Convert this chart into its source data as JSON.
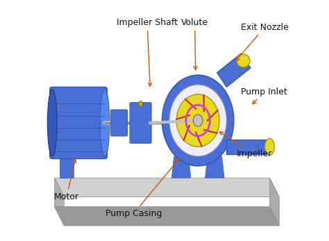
{
  "background_color": "#ffffff",
  "annotation_color": "#cc5500",
  "annotation_fontsize": 9,
  "pump_blue": "#4a6fd4",
  "pump_blue2": "#3358b8",
  "pump_blue_light": "#5588ee",
  "pump_blue_dark": "#223388",
  "pump_blue_mid": "#3355aa",
  "gray_top": "#d0d0d0",
  "gray_side": "#b0b0b0",
  "gray_dark": "#999999",
  "gray_right": "#aaaaaa",
  "yellow": "#e8d820",
  "yellow_edge": "#aa9900",
  "red": "#cc2222",
  "magenta": "#cc44cc",
  "silver": "#c0c0c0",
  "silver_dark": "#888888",
  "gold": "#ccaa00",
  "gold_dark": "#886600",
  "annotations": [
    {
      "text": "Impeller Shaft",
      "lpos": [
        0.3,
        0.9
      ],
      "apos": [
        0.44,
        0.63
      ],
      "ha": "left"
    },
    {
      "text": "Volute",
      "lpos": [
        0.57,
        0.9
      ],
      "apos": [
        0.63,
        0.7
      ],
      "ha": "left"
    },
    {
      "text": "Exit Nozzle",
      "lpos": [
        0.82,
        0.88
      ],
      "apos": [
        0.79,
        0.74
      ],
      "ha": "left"
    },
    {
      "text": "Pump Inlet",
      "lpos": [
        0.82,
        0.61
      ],
      "apos": [
        0.86,
        0.56
      ],
      "ha": "left"
    },
    {
      "text": "Impeller",
      "lpos": [
        0.8,
        0.35
      ],
      "apos": [
        0.72,
        0.46
      ],
      "ha": "left"
    },
    {
      "text": "Pump Casing",
      "lpos": [
        0.37,
        0.1
      ],
      "apos": [
        0.57,
        0.35
      ],
      "ha": "center"
    },
    {
      "text": "Motor",
      "lpos": [
        0.09,
        0.17
      ],
      "apos": [
        0.13,
        0.35
      ],
      "ha": "center"
    }
  ]
}
